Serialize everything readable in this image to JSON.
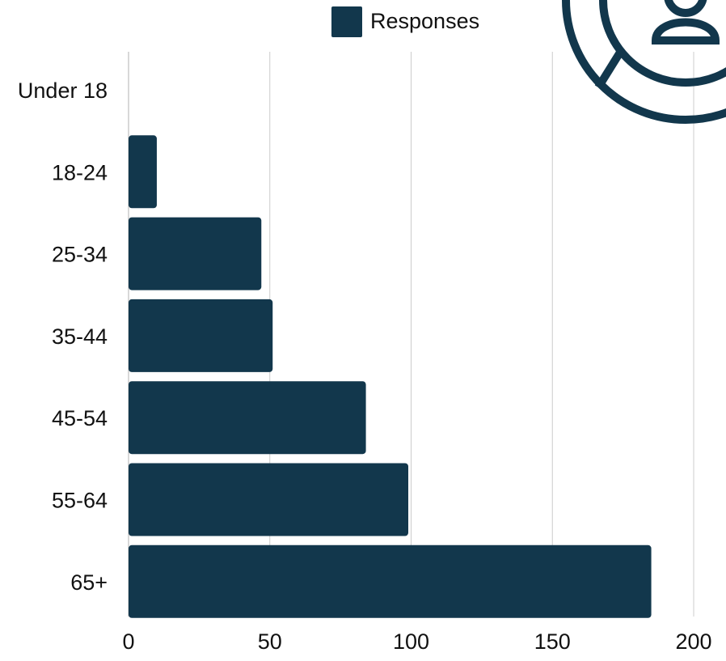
{
  "chart_data": {
    "type": "bar",
    "orientation": "horizontal",
    "categories": [
      "Under 18",
      "18-24",
      "25-34",
      "35-44",
      "45-54",
      "55-64",
      "65+"
    ],
    "series": [
      {
        "name": "Responses",
        "values": [
          0,
          10,
          47,
          51,
          84,
          99,
          185
        ]
      }
    ],
    "xlim": [
      0,
      200
    ],
    "xticks": [
      0,
      50,
      100,
      150,
      200
    ],
    "grid": true,
    "legend_position": "top-center",
    "title": "",
    "xlabel": "",
    "ylabel": ""
  },
  "colors": {
    "bar": "#12374c",
    "grid": "#cccccc",
    "text": "#111111",
    "icon": "#12374c"
  },
  "decoration": {
    "icon": "user-circle-icon"
  }
}
